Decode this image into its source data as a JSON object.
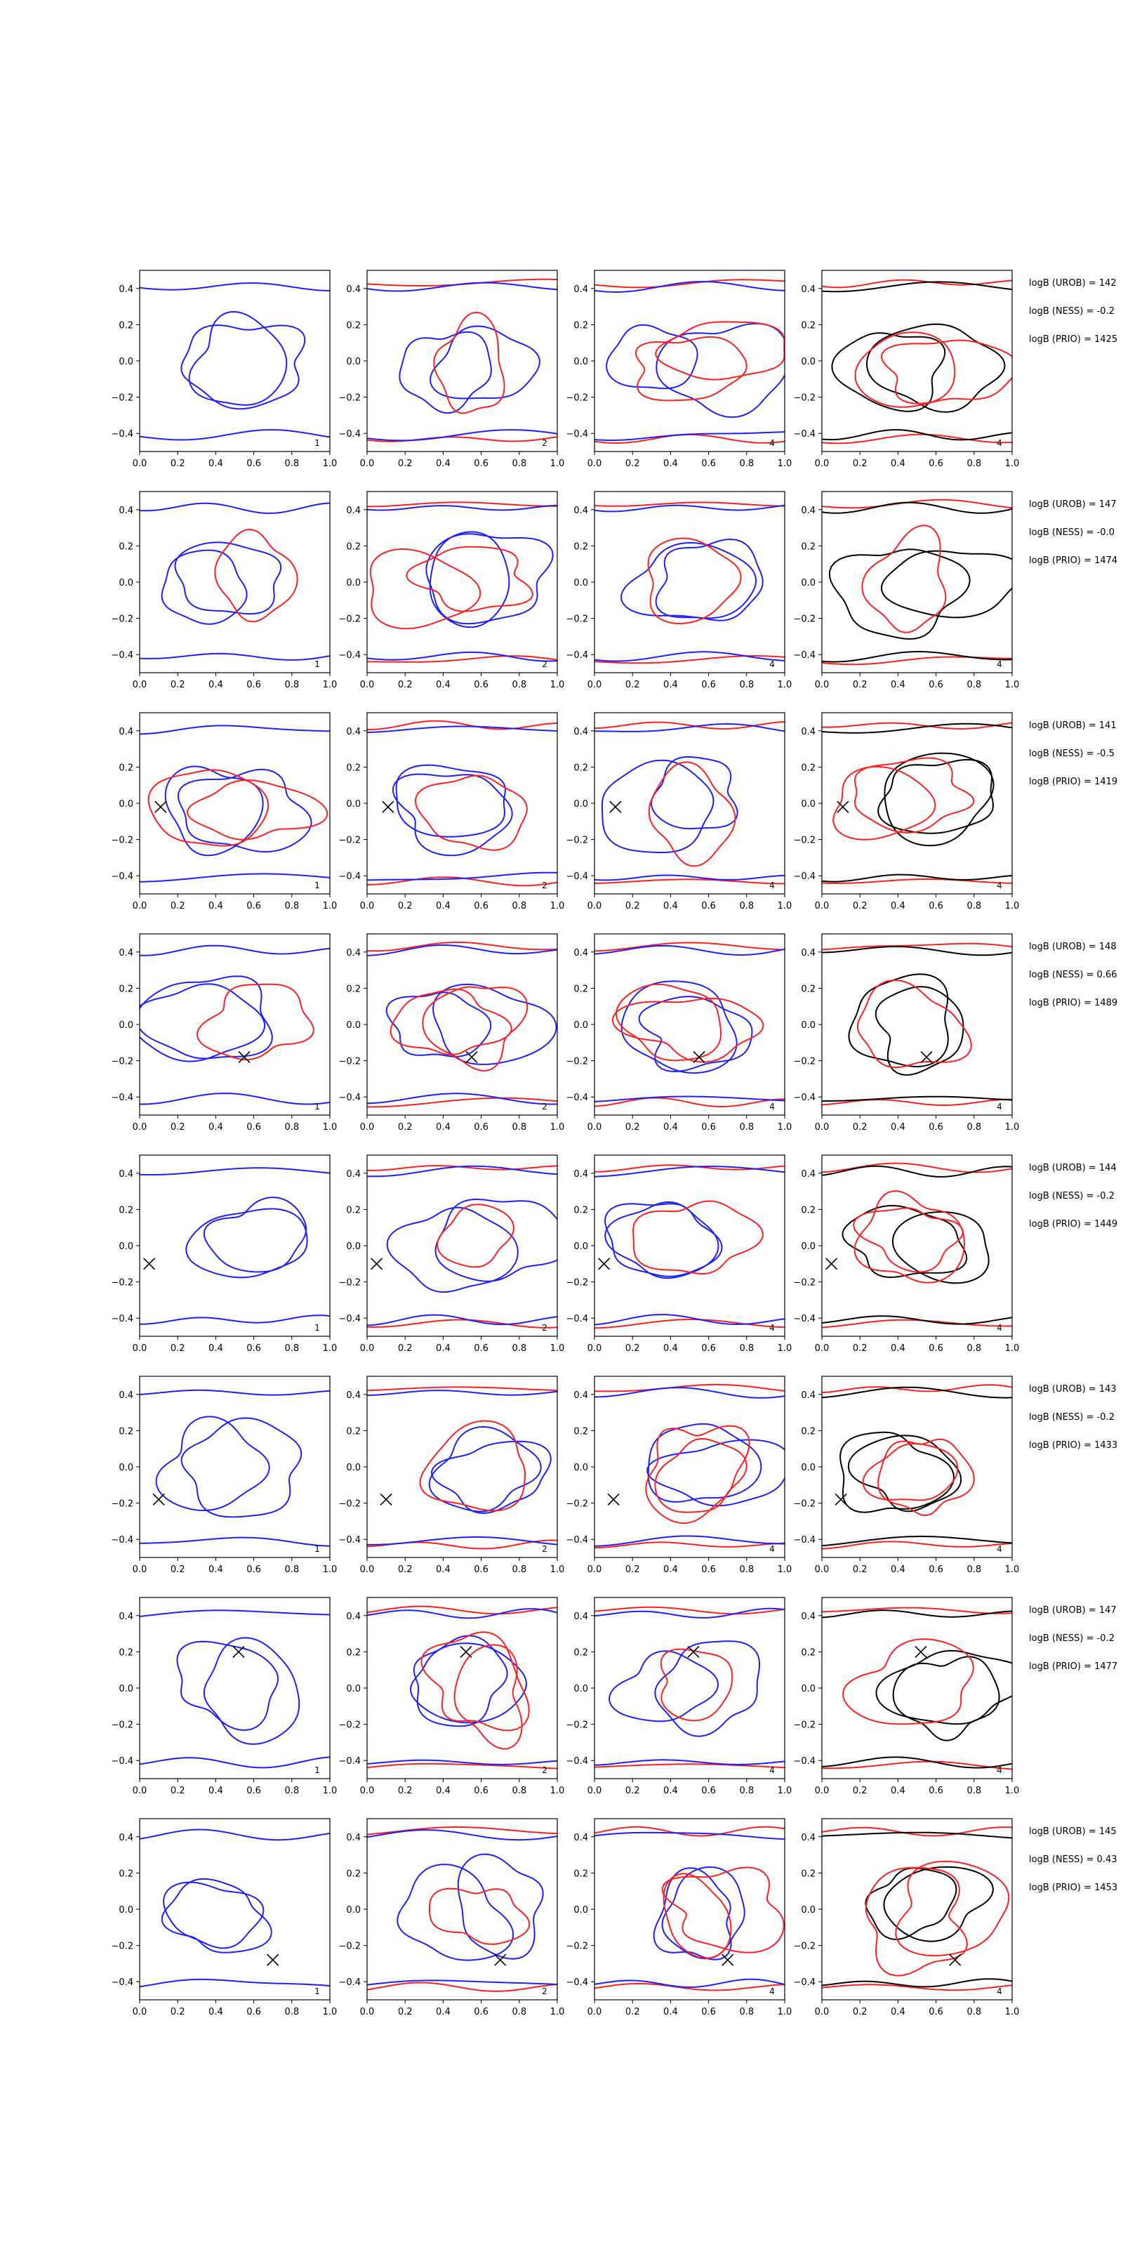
{
  "chart_data": {
    "type": "contour",
    "grid_rows": 8,
    "grid_cols": 4,
    "xlim": [
      0.0,
      1.0
    ],
    "ylim": [
      -0.5,
      0.5
    ],
    "x_ticks": [
      "0.0",
      "0.2",
      "0.4",
      "0.6",
      "0.8",
      "1.0"
    ],
    "y_ticks": [
      "0.4",
      "0.2",
      "0.0",
      "−0.2",
      "−0.4"
    ],
    "colors": {
      "urob": "#1f1fff",
      "ness": "#ff1f1f",
      "prio": "#000000"
    },
    "panel_labels": [
      "1",
      "2",
      "4",
      "4"
    ],
    "rows": [
      {
        "marker": null,
        "annotations": [
          "logB (UROB) = 142",
          "logB (NESS) = -0.2",
          "logB (PRIO) = 1425"
        ]
      },
      {
        "marker": null,
        "annotations": [
          "logB (UROB) = 147",
          "logB (NESS) = -0.0",
          "logB (PRIO) = 1474"
        ]
      },
      {
        "marker": [
          0.11,
          -0.02
        ],
        "annotations": [
          "logB (UROB) = 141",
          "logB (NESS) = -0.5",
          "logB (PRIO) = 1419"
        ]
      },
      {
        "marker": [
          0.55,
          -0.18
        ],
        "annotations": [
          "logB (UROB) = 148",
          "logB (NESS) = 0.66",
          "logB (PRIO) = 1489"
        ]
      },
      {
        "marker": [
          0.05,
          -0.1
        ],
        "annotations": [
          "logB (UROB) = 144",
          "logB (NESS) = -0.2",
          "logB (PRIO) = 1449"
        ]
      },
      {
        "marker": [
          0.1,
          -0.18
        ],
        "annotations": [
          "logB (UROB) = 143",
          "logB (NESS) = -0.2",
          "logB (PRIO) = 1433"
        ]
      },
      {
        "marker": [
          0.52,
          0.2
        ],
        "annotations": [
          "logB (UROB) = 147",
          "logB (NESS) = -0.2",
          "logB (PRIO) = 1477"
        ]
      },
      {
        "marker": [
          0.7,
          -0.28
        ],
        "annotations": [
          "logB (UROB) = 145",
          "logB (NESS) = 0.43",
          "logB (PRIO) = 1453"
        ]
      }
    ]
  }
}
